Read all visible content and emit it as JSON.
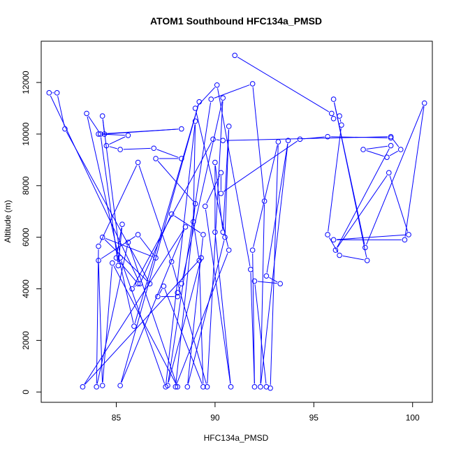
{
  "chart_data": {
    "type": "line",
    "title": "ATOM1 Southbound HFC134a_PMSD",
    "xlabel": "HFC134a_PMSD",
    "ylabel": "Altitude (m)",
    "xlim": [
      81.2,
      101.0
    ],
    "ylim": [
      -400,
      13600
    ],
    "x_ticks": [
      85,
      90,
      95,
      100
    ],
    "y_ticks": [
      0,
      2000,
      4000,
      6000,
      8000,
      10000,
      12000
    ],
    "x_tick_labels": [
      "85",
      "90",
      "95",
      "100"
    ],
    "y_tick_labels": [
      "0",
      "2000",
      "4000",
      "6000",
      "8000",
      "10000",
      "12000"
    ],
    "grid": false,
    "marker": "open-circle",
    "color": "#0000ff",
    "series": [
      {
        "values": [
          [
            91.0,
            13050
          ],
          [
            95.9,
            10800
          ],
          [
            96.0,
            10600
          ],
          [
            96.3,
            10700
          ],
          [
            96.4,
            10350
          ],
          [
            95.7,
            6100
          ],
          [
            96.3,
            5300
          ],
          [
            97.7,
            5100
          ],
          [
            96.0,
            11350
          ],
          [
            97.6,
            5600
          ],
          [
            100.6,
            11200
          ],
          [
            99.6,
            5900
          ],
          [
            96.0,
            5900
          ],
          [
            99.8,
            6100
          ],
          [
            98.8,
            8500
          ],
          [
            96.1,
            5500
          ],
          [
            98.9,
            9550
          ],
          [
            97.5,
            9400
          ],
          [
            98.7,
            9100
          ],
          [
            99.4,
            9400
          ],
          [
            98.9,
            9900
          ],
          [
            90.4,
            9750
          ],
          [
            89.9,
            9800
          ],
          [
            85.8,
            4000
          ],
          [
            86.1,
            4200
          ],
          [
            85.0,
            5200
          ],
          [
            85.3,
            6500
          ],
          [
            85.1,
            4900
          ],
          [
            84.2,
            10000
          ],
          [
            83.5,
            10800
          ],
          [
            85.9,
            2550
          ],
          [
            89.2,
            11250
          ],
          [
            85.2,
            250
          ],
          [
            88.5,
            6400
          ],
          [
            83.3,
            200
          ],
          [
            89.3,
            5200
          ],
          [
            87.6,
            250
          ],
          [
            89.8,
            11350
          ],
          [
            91.9,
            11950
          ],
          [
            92.5,
            7400
          ],
          [
            92.3,
            200
          ],
          [
            93.7,
            9750
          ],
          [
            92.6,
            4500
          ],
          [
            93.3,
            4200
          ],
          [
            92.0,
            4300
          ],
          [
            92.6,
            200
          ],
          [
            92.8,
            150
          ],
          [
            93.2,
            9700
          ],
          [
            91.9,
            5500
          ],
          [
            92.0,
            200
          ],
          [
            91.8,
            4750
          ],
          [
            90.1,
            11900
          ],
          [
            89.0,
            11000
          ],
          [
            90.7,
            5500
          ],
          [
            88.0,
            200
          ],
          [
            89.0,
            7300
          ],
          [
            87.0,
            9050
          ],
          [
            88.3,
            9050
          ],
          [
            86.9,
            9450
          ],
          [
            85.2,
            9400
          ],
          [
            84.5,
            9550
          ],
          [
            85.6,
            9950
          ],
          [
            84.1,
            10000
          ],
          [
            88.3,
            10200
          ],
          [
            84.4,
            10000
          ],
          [
            84.3,
            10700
          ],
          [
            85.2,
            5200
          ],
          [
            87.5,
            200
          ],
          [
            89.0,
            10500
          ],
          [
            88.9,
            6600
          ],
          [
            89.2,
            5100
          ],
          [
            89.4,
            200
          ],
          [
            87.4,
            4100
          ],
          [
            87.1,
            3700
          ],
          [
            88.1,
            3700
          ],
          [
            88.1,
            3850
          ],
          [
            88.3,
            4200
          ],
          [
            90.4,
            11400
          ],
          [
            89.6,
            200
          ],
          [
            87.8,
            5050
          ],
          [
            86.1,
            8900
          ],
          [
            84.1,
            5650
          ],
          [
            84.0,
            200
          ],
          [
            85.6,
            5800
          ],
          [
            88.1,
            200
          ],
          [
            84.8,
            5000
          ],
          [
            84.3,
            250
          ],
          [
            84.1,
            5100
          ],
          [
            86.1,
            6100
          ],
          [
            87.0,
            5200
          ],
          [
            84.3,
            6000
          ],
          [
            86.7,
            4200
          ],
          [
            82.4,
            10200
          ],
          [
            82.0,
            11600
          ],
          [
            81.6,
            11600
          ],
          [
            86.2,
            4200
          ],
          [
            87.8,
            6900
          ],
          [
            89.4,
            6100
          ],
          [
            88.6,
            200
          ],
          [
            90.5,
            6000
          ],
          [
            90.7,
            10300
          ],
          [
            90.4,
            6200
          ],
          [
            90.0,
            8900
          ],
          [
            90.0,
            6200
          ],
          [
            90.8,
            200
          ],
          [
            89.5,
            7200
          ],
          [
            90.3,
            8500
          ],
          [
            90.3,
            7700
          ],
          [
            94.3,
            9800
          ],
          [
            95.7,
            9900
          ],
          [
            98.9,
            9850
          ]
        ]
      }
    ]
  }
}
